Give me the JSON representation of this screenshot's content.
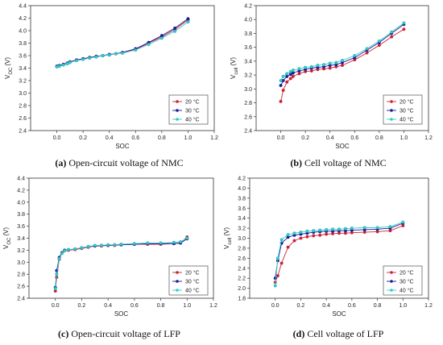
{
  "series_colors": {
    "20": "#cc2233",
    "30": "#1a1a99",
    "40": "#33cccc"
  },
  "chart_data": [
    {
      "type": "line",
      "caption_letter": "(a)",
      "caption_text": "Open-circuit voltage of NMC",
      "xlabel": "SOC",
      "ylabel_main": "V",
      "ylabel_sub": "OC",
      "ylabel_unit": "(V)",
      "xlim": [
        -0.2,
        1.2
      ],
      "ylim": [
        2.4,
        4.4
      ],
      "xticks": [
        "0.0",
        "0.2",
        "0.4",
        "0.6",
        "0.8",
        "1.0",
        "1.2"
      ],
      "yticks": [
        "2.4",
        "2.6",
        "2.8",
        "3.0",
        "3.2",
        "3.4",
        "3.6",
        "3.8",
        "4.0",
        "4.2",
        "4.4"
      ],
      "legend": [
        "20 °C",
        "30 °C",
        "40 °C"
      ],
      "series": [
        {
          "name": "20 °C",
          "x": [
            0,
            0.02,
            0.05,
            0.08,
            0.1,
            0.15,
            0.2,
            0.25,
            0.3,
            0.35,
            0.4,
            0.45,
            0.5,
            0.6,
            0.7,
            0.8,
            0.9,
            1.0
          ],
          "y": [
            3.43,
            3.44,
            3.46,
            3.48,
            3.5,
            3.53,
            3.55,
            3.57,
            3.58,
            3.6,
            3.61,
            3.63,
            3.65,
            3.7,
            3.8,
            3.9,
            4.02,
            4.17
          ]
        },
        {
          "name": "30 °C",
          "x": [
            0,
            0.02,
            0.05,
            0.08,
            0.1,
            0.15,
            0.2,
            0.25,
            0.3,
            0.35,
            0.4,
            0.45,
            0.5,
            0.6,
            0.7,
            0.8,
            0.9,
            1.0
          ],
          "y": [
            3.43,
            3.44,
            3.46,
            3.48,
            3.5,
            3.53,
            3.55,
            3.57,
            3.59,
            3.6,
            3.62,
            3.63,
            3.65,
            3.71,
            3.81,
            3.92,
            4.04,
            4.19
          ]
        },
        {
          "name": "40 °C",
          "x": [
            0,
            0.02,
            0.05,
            0.08,
            0.1,
            0.15,
            0.2,
            0.25,
            0.3,
            0.35,
            0.4,
            0.45,
            0.5,
            0.6,
            0.7,
            0.8,
            0.9,
            1.0
          ],
          "y": [
            3.42,
            3.43,
            3.45,
            3.47,
            3.49,
            3.52,
            3.54,
            3.56,
            3.58,
            3.6,
            3.61,
            3.63,
            3.64,
            3.69,
            3.78,
            3.88,
            3.99,
            4.14
          ]
        }
      ]
    },
    {
      "type": "line",
      "caption_letter": "(b)",
      "caption_text": "Cell voltage of NMC",
      "xlabel": "SOC",
      "ylabel_main": "V",
      "ylabel_sub": "cell",
      "ylabel_unit": "(V)",
      "xlim": [
        -0.2,
        1.2
      ],
      "ylim": [
        2.4,
        4.2
      ],
      "xticks": [
        "0.0",
        "0.2",
        "0.4",
        "0.6",
        "0.8",
        "1.0",
        "1.2"
      ],
      "yticks": [
        "2.4",
        "2.6",
        "2.8",
        "3.0",
        "3.2",
        "3.4",
        "3.6",
        "3.8",
        "4.0",
        "4.2"
      ],
      "legend": [
        "20 °C",
        "30 °C",
        "40 °C"
      ],
      "series": [
        {
          "name": "20 °C",
          "x": [
            0,
            0.02,
            0.05,
            0.08,
            0.1,
            0.15,
            0.2,
            0.25,
            0.3,
            0.35,
            0.4,
            0.45,
            0.5,
            0.6,
            0.7,
            0.8,
            0.9,
            1.0
          ],
          "y": [
            2.82,
            2.98,
            3.1,
            3.15,
            3.18,
            3.22,
            3.25,
            3.26,
            3.28,
            3.29,
            3.3,
            3.32,
            3.34,
            3.42,
            3.52,
            3.63,
            3.75,
            3.86
          ]
        },
        {
          "name": "30 °C",
          "x": [
            0,
            0.02,
            0.05,
            0.08,
            0.1,
            0.15,
            0.2,
            0.25,
            0.3,
            0.35,
            0.4,
            0.45,
            0.5,
            0.6,
            0.7,
            0.8,
            0.9,
            1.0
          ],
          "y": [
            3.05,
            3.12,
            3.18,
            3.21,
            3.23,
            3.26,
            3.28,
            3.3,
            3.31,
            3.32,
            3.34,
            3.35,
            3.38,
            3.45,
            3.56,
            3.67,
            3.8,
            3.93
          ]
        },
        {
          "name": "40 °C",
          "x": [
            0,
            0.02,
            0.05,
            0.08,
            0.1,
            0.15,
            0.2,
            0.25,
            0.3,
            0.35,
            0.4,
            0.45,
            0.5,
            0.6,
            0.7,
            0.8,
            0.9,
            1.0
          ],
          "y": [
            3.12,
            3.18,
            3.22,
            3.25,
            3.27,
            3.29,
            3.31,
            3.32,
            3.34,
            3.35,
            3.37,
            3.38,
            3.41,
            3.48,
            3.58,
            3.69,
            3.82,
            3.95
          ]
        }
      ]
    },
    {
      "type": "line",
      "caption_letter": "(c)",
      "caption_text": "Open-circuit voltage of LFP",
      "xlabel": "SOC",
      "ylabel_main": "V",
      "ylabel_sub": "OC",
      "ylabel_unit": "(V)",
      "xlim": [
        -0.2,
        1.2
      ],
      "ylim": [
        2.4,
        4.4
      ],
      "xticks": [
        "0.0",
        "0.2",
        "0.4",
        "0.6",
        "0.8",
        "1.0",
        "1.2"
      ],
      "yticks": [
        "2.4",
        "2.6",
        "2.8",
        "3.0",
        "3.2",
        "3.4",
        "3.6",
        "3.8",
        "4.0",
        "4.2",
        "4.4"
      ],
      "legend": [
        "20 °C",
        "30 °C",
        "40 °C"
      ],
      "series": [
        {
          "name": "20 °C",
          "x": [
            0,
            0.01,
            0.03,
            0.05,
            0.07,
            0.1,
            0.15,
            0.2,
            0.25,
            0.3,
            0.35,
            0.4,
            0.45,
            0.5,
            0.6,
            0.7,
            0.8,
            0.9,
            0.95,
            1.0
          ],
          "y": [
            2.52,
            2.75,
            3.05,
            3.15,
            3.19,
            3.2,
            3.21,
            3.23,
            3.25,
            3.27,
            3.27,
            3.28,
            3.28,
            3.29,
            3.3,
            3.3,
            3.3,
            3.31,
            3.32,
            3.42
          ]
        },
        {
          "name": "30 °C",
          "x": [
            0,
            0.01,
            0.03,
            0.05,
            0.07,
            0.1,
            0.15,
            0.2,
            0.25,
            0.3,
            0.35,
            0.4,
            0.45,
            0.5,
            0.6,
            0.7,
            0.8,
            0.9,
            0.95,
            1.0
          ],
          "y": [
            2.58,
            2.86,
            3.08,
            3.16,
            3.2,
            3.21,
            3.22,
            3.24,
            3.26,
            3.27,
            3.28,
            3.28,
            3.29,
            3.29,
            3.3,
            3.31,
            3.31,
            3.31,
            3.32,
            3.39
          ]
        },
        {
          "name": "40 °C",
          "x": [
            0,
            0.01,
            0.03,
            0.05,
            0.07,
            0.1,
            0.15,
            0.2,
            0.25,
            0.3,
            0.35,
            0.4,
            0.45,
            0.5,
            0.6,
            0.7,
            0.8,
            0.9,
            0.95,
            1.0
          ],
          "y": [
            2.56,
            2.8,
            3.06,
            3.15,
            3.19,
            3.21,
            3.22,
            3.24,
            3.26,
            3.28,
            3.28,
            3.29,
            3.29,
            3.3,
            3.31,
            3.32,
            3.32,
            3.33,
            3.34,
            3.4
          ]
        }
      ]
    },
    {
      "type": "line",
      "caption_letter": "(d)",
      "caption_text": "Cell voltage of LFP",
      "xlabel": "SOC",
      "ylabel_main": "V",
      "ylabel_sub": "cell",
      "ylabel_unit": "(V)",
      "xlim": [
        -0.2,
        1.2
      ],
      "ylim": [
        1.8,
        4.2
      ],
      "xticks": [
        "0.0",
        "0.2",
        "0.4",
        "0.6",
        "0.8",
        "1.0",
        "1.2"
      ],
      "yticks": [
        "1.8",
        "2.0",
        "2.2",
        "2.4",
        "2.6",
        "2.8",
        "3.0",
        "3.2",
        "3.4",
        "3.6",
        "3.8",
        "4.0",
        "4.2"
      ],
      "legend": [
        "20 °C",
        "30 °C",
        "40 °C"
      ],
      "series": [
        {
          "name": "20 °C",
          "x": [
            0,
            0.02,
            0.05,
            0.1,
            0.15,
            0.2,
            0.25,
            0.3,
            0.35,
            0.4,
            0.45,
            0.5,
            0.55,
            0.6,
            0.7,
            0.8,
            0.9,
            1.0
          ],
          "y": [
            2.12,
            2.25,
            2.5,
            2.82,
            2.95,
            3.0,
            3.03,
            3.05,
            3.06,
            3.08,
            3.09,
            3.1,
            3.1,
            3.11,
            3.12,
            3.13,
            3.15,
            3.25
          ]
        },
        {
          "name": "30 °C",
          "x": [
            0,
            0.02,
            0.05,
            0.1,
            0.15,
            0.2,
            0.25,
            0.3,
            0.35,
            0.4,
            0.45,
            0.5,
            0.55,
            0.6,
            0.7,
            0.8,
            0.9,
            1.0
          ],
          "y": [
            2.2,
            2.55,
            2.9,
            3.02,
            3.06,
            3.08,
            3.1,
            3.12,
            3.13,
            3.14,
            3.14,
            3.15,
            3.15,
            3.16,
            3.17,
            3.18,
            3.2,
            3.3
          ]
        },
        {
          "name": "40 °C",
          "x": [
            0,
            0.02,
            0.05,
            0.1,
            0.15,
            0.2,
            0.25,
            0.3,
            0.35,
            0.4,
            0.45,
            0.5,
            0.55,
            0.6,
            0.7,
            0.8,
            0.9,
            1.0
          ],
          "y": [
            2.05,
            2.6,
            2.97,
            3.07,
            3.1,
            3.12,
            3.14,
            3.15,
            3.16,
            3.17,
            3.18,
            3.18,
            3.19,
            3.2,
            3.21,
            3.21,
            3.23,
            3.32
          ]
        }
      ]
    }
  ]
}
